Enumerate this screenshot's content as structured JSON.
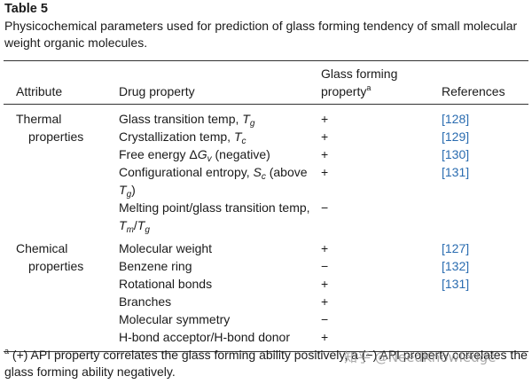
{
  "header": {
    "title": "Table 5",
    "caption": "Physicochemical parameters used for prediction of glass forming tendency of small molecular weight organic molecules."
  },
  "table": {
    "columns": [
      "Attribute",
      "Drug property",
      [
        {
          "text": "Glass forming property"
        },
        {
          "text": "a",
          "style": "sup"
        }
      ],
      "References"
    ],
    "groups": [
      {
        "attribute": "Thermal properties",
        "rows": [
          {
            "property": [
              {
                "text": "Glass transition temp, "
              },
              {
                "text": "T",
                "style": "italic"
              },
              {
                "text": "g",
                "style": "sub"
              }
            ],
            "effect": "+",
            "reference": "[128]"
          },
          {
            "property": [
              {
                "text": "Crystallization temp, "
              },
              {
                "text": "T",
                "style": "italic"
              },
              {
                "text": "c",
                "style": "sub"
              }
            ],
            "effect": "+",
            "reference": "[129]"
          },
          {
            "property": [
              {
                "text": "Free energy Δ"
              },
              {
                "text": "G",
                "style": "italic"
              },
              {
                "text": "v",
                "style": "sub"
              },
              {
                "text": " (negative)"
              }
            ],
            "effect": "+",
            "reference": "[130]"
          },
          {
            "property": [
              {
                "text": "Configurational entropy, "
              },
              {
                "text": "S",
                "style": "italic"
              },
              {
                "text": "c",
                "style": "sub"
              },
              {
                "text": " (above "
              },
              {
                "text": "T",
                "style": "italic"
              },
              {
                "text": "g",
                "style": "sub"
              },
              {
                "text": ")"
              }
            ],
            "effect": "+",
            "reference": "[131]"
          },
          {
            "property": [
              {
                "text": "Melting point/glass transition temp, "
              },
              {
                "text": "T",
                "style": "italic"
              },
              {
                "text": "m",
                "style": "sub"
              },
              {
                "text": "/"
              },
              {
                "text": "T",
                "style": "italic"
              },
              {
                "text": "g",
                "style": "sub"
              }
            ],
            "effect": "−"
          }
        ]
      },
      {
        "attribute": "Chemical properties",
        "rows": [
          {
            "property": "Molecular weight",
            "effect": "+",
            "reference": "[127]"
          },
          {
            "property": "Benzene ring",
            "effect": "−",
            "reference": "[132]"
          },
          {
            "property": "Rotational bonds",
            "effect": "+",
            "reference": "[131]"
          },
          {
            "property": "Branches",
            "effect": "+"
          },
          {
            "property": "Molecular symmetry",
            "effect": "−"
          },
          {
            "property": "H-bond acceptor/H-bond donor",
            "effect": "+"
          }
        ]
      }
    ]
  },
  "footnote": [
    {
      "text": "a",
      "style": "sup"
    },
    {
      "text": " (+) API property correlates the glass forming ability positively, a (−) API property correlates the glass forming ability negatively."
    }
  ],
  "watermark": "知乎 @NeedKnowledge"
}
